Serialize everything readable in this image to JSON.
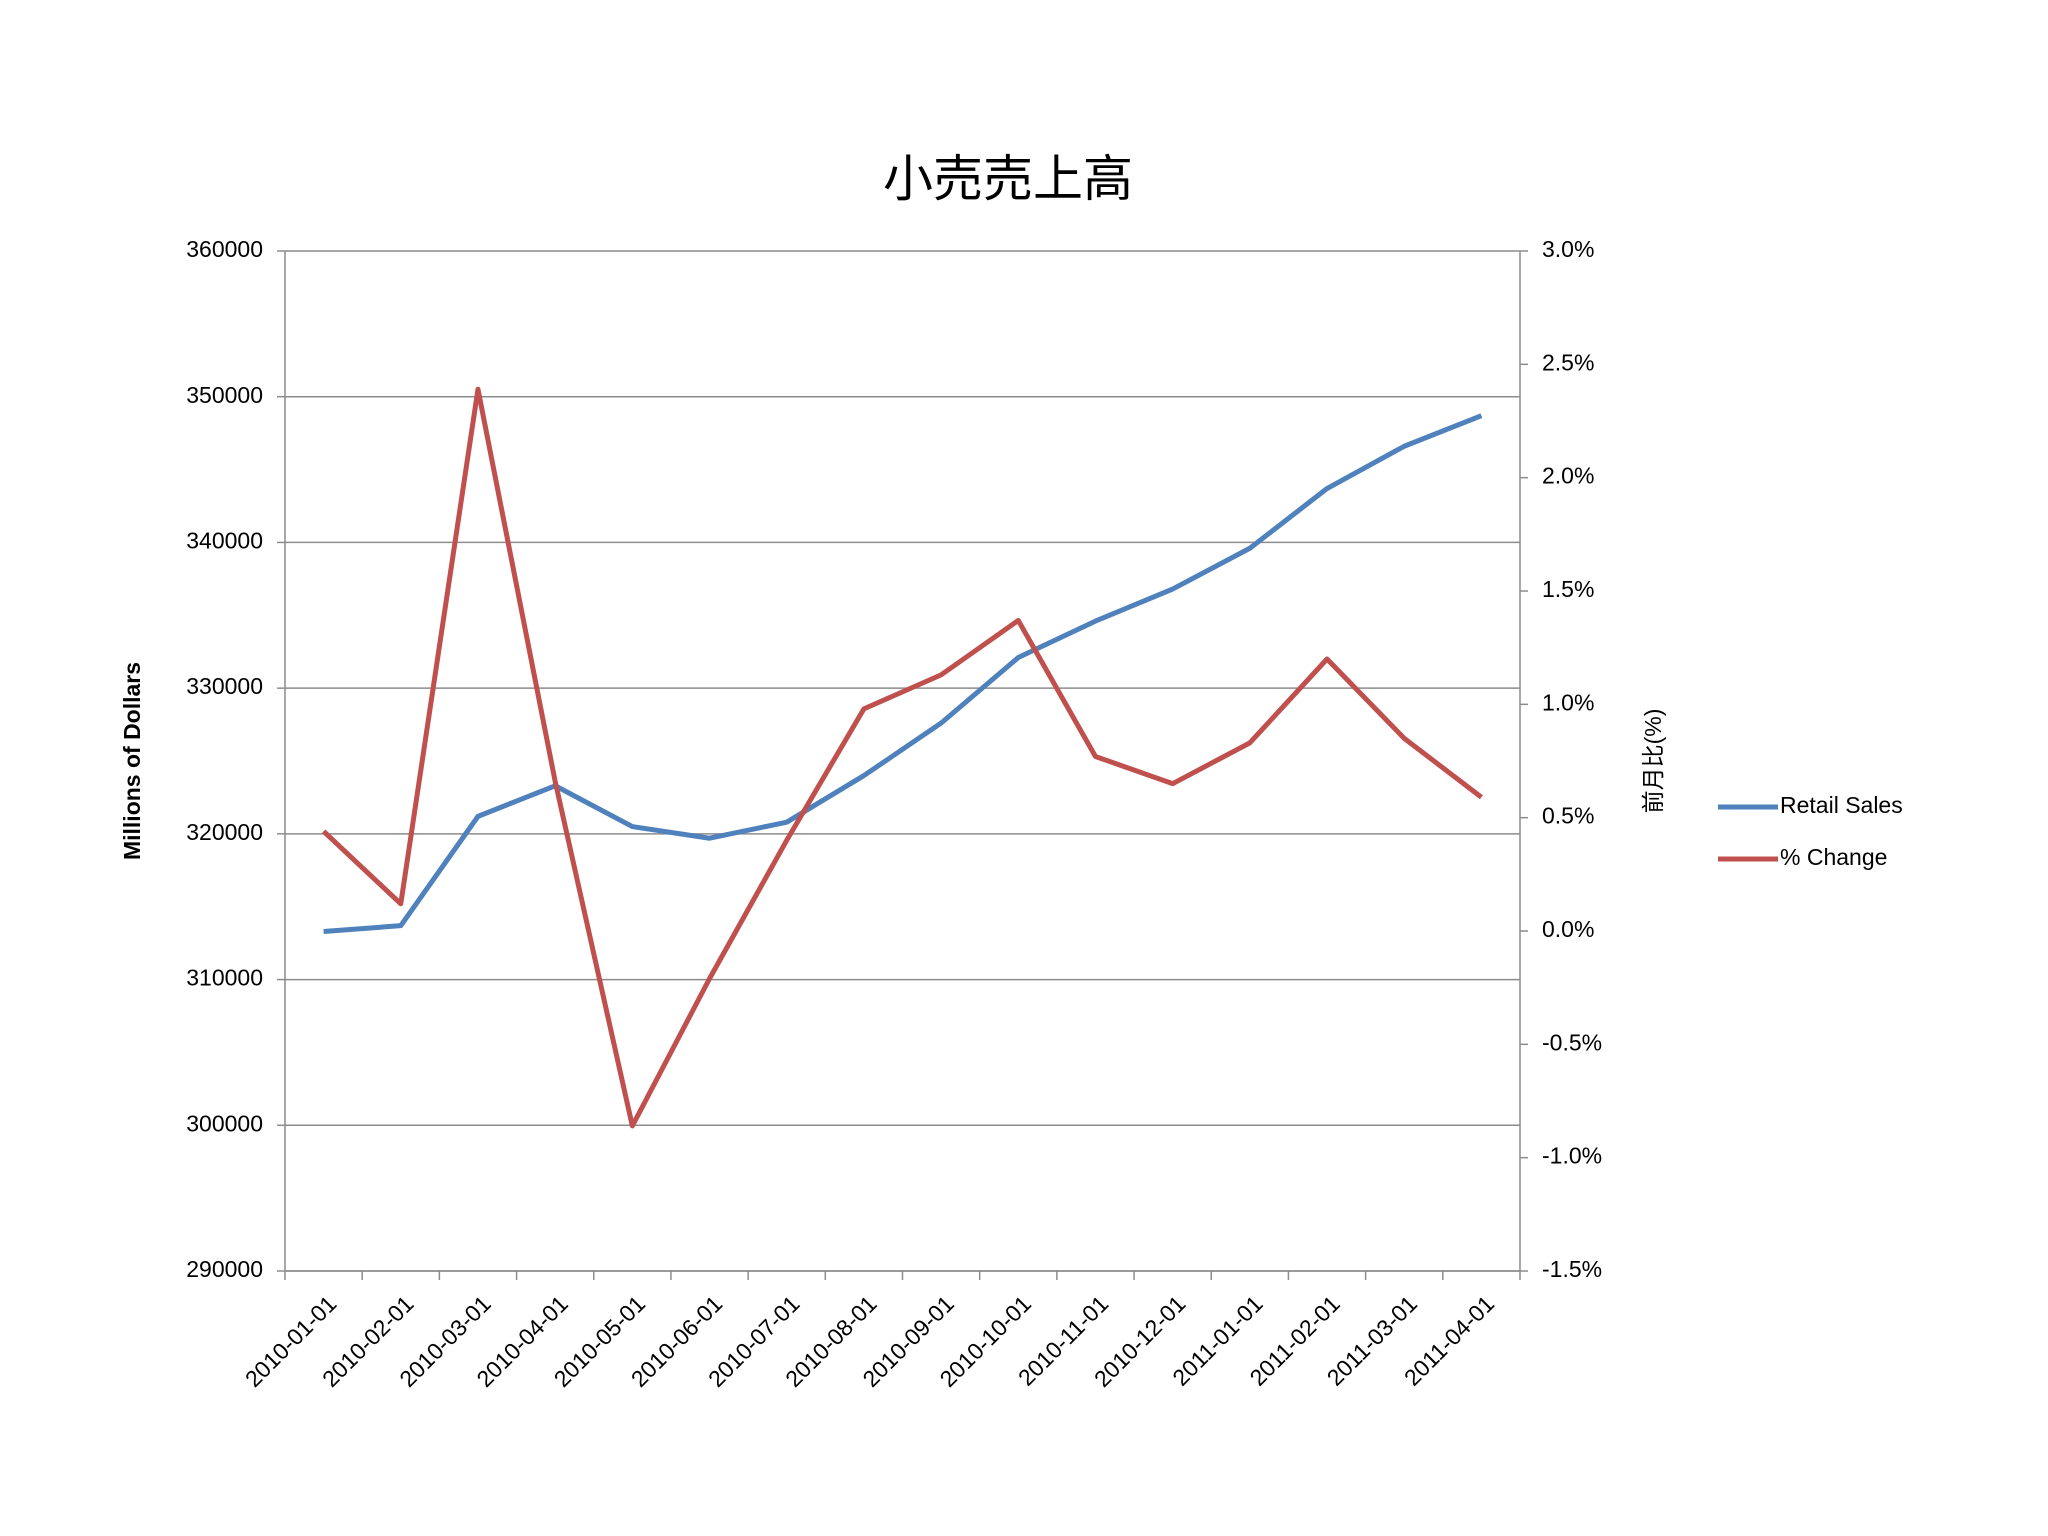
{
  "chart_data": {
    "type": "line",
    "title": "小売売上高",
    "y_label": "Millions of Dollars",
    "y2_label": "前月比(%)",
    "categories": [
      "2010-01-01",
      "2010-02-01",
      "2010-03-01",
      "2010-04-01",
      "2010-05-01",
      "2010-06-01",
      "2010-07-01",
      "2010-08-01",
      "2010-09-01",
      "2010-10-01",
      "2010-11-01",
      "2010-12-01",
      "2011-01-01",
      "2011-02-01",
      "2011-03-01",
      "2011-04-01"
    ],
    "series": [
      {
        "name": "Retail Sales",
        "color": "#4f81bd",
        "axis": "y",
        "values": [
          313300,
          313700,
          321200,
          323300,
          320500,
          319700,
          320800,
          324000,
          327600,
          332100,
          334600,
          336800,
          339600,
          343700,
          346600,
          348700
        ]
      },
      {
        "name": "% Change",
        "color": "#c0504d",
        "axis": "y2",
        "values": [
          0.44,
          0.12,
          2.39,
          0.66,
          -0.86,
          -0.21,
          0.4,
          0.98,
          1.13,
          1.37,
          0.77,
          0.65,
          0.83,
          1.2,
          0.85,
          0.59
        ]
      }
    ],
    "ylim": [
      290000,
      360000
    ],
    "yticks": [
      290000,
      300000,
      310000,
      320000,
      330000,
      340000,
      350000,
      360000
    ],
    "y2lim": [
      -1.5,
      3.0
    ],
    "y2ticks": [
      {
        "value": -1.5,
        "label": "-1.5%"
      },
      {
        "value": -1.0,
        "label": "-1.0%"
      },
      {
        "value": -0.5,
        "label": "-0.5%"
      },
      {
        "value": 0,
        "label": "0.0%"
      },
      {
        "value": 0.5,
        "label": "0.5%"
      },
      {
        "value": 1.0,
        "label": "1.0%"
      },
      {
        "value": 1.5,
        "label": "1.5%"
      },
      {
        "value": 2.0,
        "label": "2.0%"
      },
      {
        "value": 2.5,
        "label": "2.5%"
      },
      {
        "value": 3.0,
        "label": "3.0%"
      }
    ],
    "grid": true,
    "legend": "right"
  }
}
